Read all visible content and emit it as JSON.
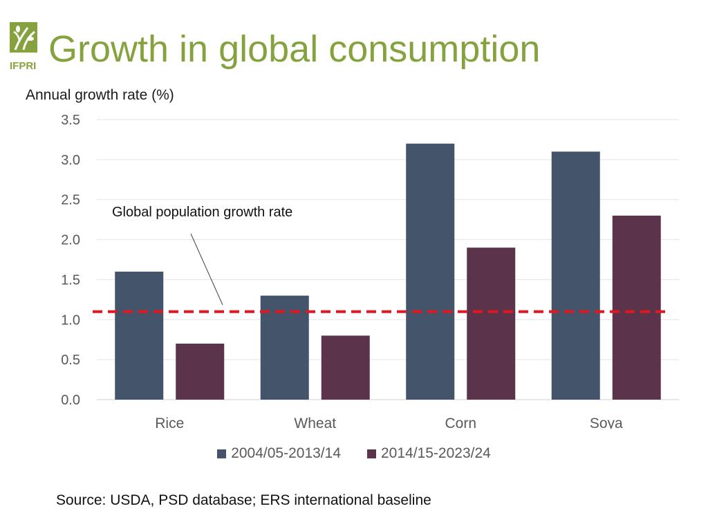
{
  "logo": {
    "text": "IFPRI",
    "icon": "ifpri-logo",
    "color": "#86a23f"
  },
  "header": {
    "title": "Growth in global consumption"
  },
  "chart_data": {
    "type": "bar",
    "title": "",
    "xlabel": "",
    "ylabel": "Annual growth rate (%)",
    "ylim": [
      0,
      3.5
    ],
    "yticks": [
      0.0,
      0.5,
      1.0,
      1.5,
      2.0,
      2.5,
      3.0,
      3.5
    ],
    "ytick_labels": [
      "0.0",
      "0.5",
      "1.0",
      "1.5",
      "2.0",
      "2.5",
      "3.0",
      "3.5"
    ],
    "grid": true,
    "legend_position": "bottom",
    "categories": [
      "Rice",
      "Wheat",
      "Corn",
      "Soya"
    ],
    "series": [
      {
        "name": "2004/05-2013/14",
        "values": [
          1.6,
          1.3,
          3.2,
          3.1
        ],
        "color": "#44546a"
      },
      {
        "name": "2014/15-2023/24",
        "values": [
          0.7,
          0.8,
          1.9,
          2.3
        ],
        "color": "#5b344c"
      }
    ],
    "reference_line": {
      "value": 1.1,
      "label": "Global population growth rate",
      "color": "#e3171d",
      "style": "dashed"
    }
  },
  "footer": {
    "source": "Source: USDA, PSD database; ERS international baseline"
  }
}
